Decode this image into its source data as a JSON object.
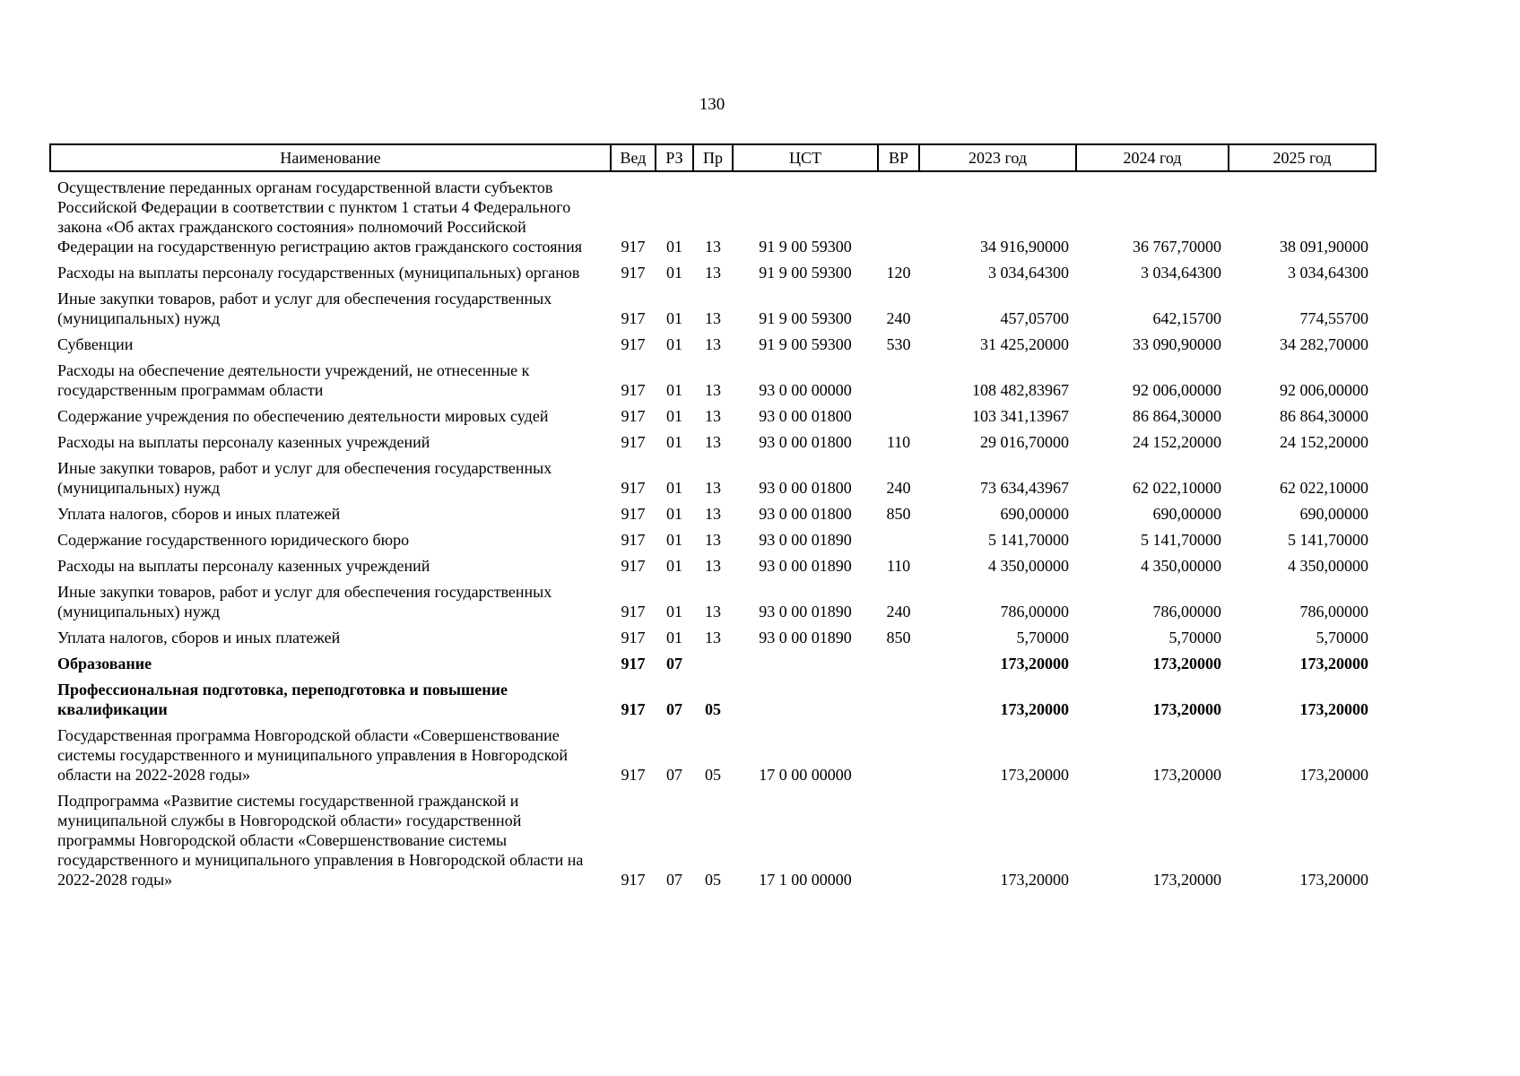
{
  "page": {
    "number": "130"
  },
  "table": {
    "headers": [
      {
        "key": "name",
        "label": "Наименование"
      },
      {
        "key": "ved",
        "label": "Вед"
      },
      {
        "key": "rz",
        "label": "РЗ"
      },
      {
        "key": "pr",
        "label": "Пр"
      },
      {
        "key": "cst",
        "label": "ЦСТ"
      },
      {
        "key": "vr",
        "label": "ВР"
      },
      {
        "key": "y2023",
        "label": "2023 год"
      },
      {
        "key": "y2024",
        "label": "2024 год"
      },
      {
        "key": "y2025",
        "label": "2025 год"
      }
    ],
    "rows": [
      {
        "name": "Осуществление переданных органам государственной власти субъектов Российской Федерации в соответствии с пунктом 1 статьи 4 Федерального закона «Об актах гражданского состояния» полномочий Российской Федерации на государственную регистрацию актов гражданского состояния",
        "ved": "917",
        "rz": "01",
        "pr": "13",
        "cst": "91 9 00 59300",
        "vr": "",
        "y2023": "34 916,90000",
        "y2024": "36 767,70000",
        "y2025": "38 091,90000",
        "bold": false
      },
      {
        "name": "Расходы на выплаты персоналу государственных (муниципальных) органов",
        "ved": "917",
        "rz": "01",
        "pr": "13",
        "cst": "91 9 00 59300",
        "vr": "120",
        "y2023": "3 034,64300",
        "y2024": "3 034,64300",
        "y2025": "3 034,64300",
        "bold": false
      },
      {
        "name": "Иные закупки товаров, работ и услуг для обеспечения государственных (муниципальных) нужд",
        "ved": "917",
        "rz": "01",
        "pr": "13",
        "cst": "91 9 00 59300",
        "vr": "240",
        "y2023": "457,05700",
        "y2024": "642,15700",
        "y2025": "774,55700",
        "bold": false
      },
      {
        "name": "Субвенции",
        "ved": "917",
        "rz": "01",
        "pr": "13",
        "cst": "91 9 00 59300",
        "vr": "530",
        "y2023": "31 425,20000",
        "y2024": "33 090,90000",
        "y2025": "34 282,70000",
        "bold": false
      },
      {
        "name": "Расходы на обеспечение деятельности учреждений, не отнесенные к государственным программам области",
        "ved": "917",
        "rz": "01",
        "pr": "13",
        "cst": "93 0 00 00000",
        "vr": "",
        "y2023": "108 482,83967",
        "y2024": "92 006,00000",
        "y2025": "92 006,00000",
        "bold": false
      },
      {
        "name": "Содержание учреждения по обеспечению деятельности мировых судей",
        "ved": "917",
        "rz": "01",
        "pr": "13",
        "cst": "93 0 00 01800",
        "vr": "",
        "y2023": "103 341,13967",
        "y2024": "86 864,30000",
        "y2025": "86 864,30000",
        "bold": false
      },
      {
        "name": "Расходы на выплаты персоналу казенных учреждений",
        "ved": "917",
        "rz": "01",
        "pr": "13",
        "cst": "93 0 00 01800",
        "vr": "110",
        "y2023": "29 016,70000",
        "y2024": "24 152,20000",
        "y2025": "24 152,20000",
        "bold": false
      },
      {
        "name": "Иные закупки товаров, работ и услуг для обеспечения государственных (муниципальных) нужд",
        "ved": "917",
        "rz": "01",
        "pr": "13",
        "cst": "93 0 00 01800",
        "vr": "240",
        "y2023": "73 634,43967",
        "y2024": "62 022,10000",
        "y2025": "62 022,10000",
        "bold": false
      },
      {
        "name": "Уплата налогов, сборов и иных платежей",
        "ved": "917",
        "rz": "01",
        "pr": "13",
        "cst": "93 0 00 01800",
        "vr": "850",
        "y2023": "690,00000",
        "y2024": "690,00000",
        "y2025": "690,00000",
        "bold": false
      },
      {
        "name": "Содержание государственного юридического бюро",
        "ved": "917",
        "rz": "01",
        "pr": "13",
        "cst": "93 0 00 01890",
        "vr": "",
        "y2023": "5 141,70000",
        "y2024": "5 141,70000",
        "y2025": "5 141,70000",
        "bold": false
      },
      {
        "name": "Расходы на выплаты персоналу казенных учреждений",
        "ved": "917",
        "rz": "01",
        "pr": "13",
        "cst": "93 0 00 01890",
        "vr": "110",
        "y2023": "4 350,00000",
        "y2024": "4 350,00000",
        "y2025": "4 350,00000",
        "bold": false
      },
      {
        "name": "Иные закупки товаров, работ и услуг для обеспечения государственных (муниципальных) нужд",
        "ved": "917",
        "rz": "01",
        "pr": "13",
        "cst": "93 0 00 01890",
        "vr": "240",
        "y2023": "786,00000",
        "y2024": "786,00000",
        "y2025": "786,00000",
        "bold": false
      },
      {
        "name": "Уплата налогов, сборов и иных платежей",
        "ved": "917",
        "rz": "01",
        "pr": "13",
        "cst": "93 0 00 01890",
        "vr": "850",
        "y2023": "5,70000",
        "y2024": "5,70000",
        "y2025": "5,70000",
        "bold": false
      },
      {
        "name": "Образование",
        "ved": "917",
        "rz": "07",
        "pr": "",
        "cst": "",
        "vr": "",
        "y2023": "173,20000",
        "y2024": "173,20000",
        "y2025": "173,20000",
        "bold": true
      },
      {
        "name": "Профессиональная подготовка, переподготовка и повышение квалификации",
        "ved": "917",
        "rz": "07",
        "pr": "05",
        "cst": "",
        "vr": "",
        "y2023": "173,20000",
        "y2024": "173,20000",
        "y2025": "173,20000",
        "bold": true
      },
      {
        "name": "Государственная программа Новгородской области «Совершенствование системы государственного и муниципального управления в Новгородской области на 2022-2028 годы»",
        "ved": "917",
        "rz": "07",
        "pr": "05",
        "cst": "17 0 00 00000",
        "vr": "",
        "y2023": "173,20000",
        "y2024": "173,20000",
        "y2025": "173,20000",
        "bold": false
      },
      {
        "name": "Подпрограмма «Развитие системы государственной гражданской и муниципальной службы в Новгородской области» государственной программы Новгородской области «Совершенствование системы государственного и муниципального управления в Новгородской области на 2022-2028 годы»",
        "ved": "917",
        "rz": "07",
        "pr": "05",
        "cst": "17 1 00 00000",
        "vr": "",
        "y2023": "173,20000",
        "y2024": "173,20000",
        "y2025": "173,20000",
        "bold": false
      }
    ]
  }
}
